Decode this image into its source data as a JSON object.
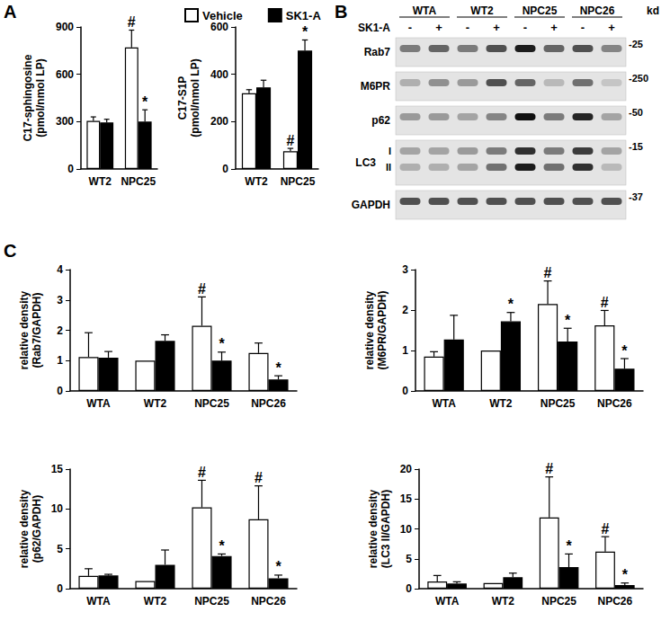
{
  "panel_labels": [
    "A",
    "B",
    "C"
  ],
  "chart_data": [
    {
      "type": "bar",
      "ylabel": "C17-sphingosine\n(pmol/nmol LP)",
      "categories": [
        "WT2",
        "NPC25"
      ],
      "series": [
        {
          "name": "Vehicle",
          "color": "#ffffff",
          "values": [
            305,
            770
          ],
          "errors": [
            25,
            110
          ],
          "annotations": [
            null,
            "#"
          ]
        },
        {
          "name": "SK1-A",
          "color": "#000000",
          "values": [
            295,
            300
          ],
          "errors": [
            20,
            75
          ],
          "annotations": [
            null,
            "*"
          ]
        }
      ],
      "ylim": [
        0,
        900
      ],
      "yticks": [
        0,
        300,
        600,
        900
      ],
      "grid": false,
      "legend": "top"
    },
    {
      "type": "bar",
      "ylabel": "C17-S1P\n(pmol/nmol LP)",
      "categories": [
        "WT2",
        "NPC25"
      ],
      "series": [
        {
          "name": "Vehicle",
          "color": "#ffffff",
          "values": [
            320,
            75
          ],
          "errors": [
            15,
            12
          ],
          "annotations": [
            null,
            "#"
          ]
        },
        {
          "name": "SK1-A",
          "color": "#000000",
          "values": [
            345,
            500
          ],
          "errors": [
            30,
            45
          ],
          "annotations": [
            null,
            "*"
          ]
        }
      ],
      "ylim": [
        0,
        600
      ],
      "yticks": [
        0,
        200,
        400,
        600
      ],
      "grid": false
    },
    {
      "type": "bar",
      "ylabel": "relative density\n(Rab7/GAPDH)",
      "categories": [
        "WTA",
        "WT2",
        "NPC25",
        "NPC26"
      ],
      "series": [
        {
          "name": "Vehicle",
          "color": "#ffffff",
          "values": [
            1.12,
            1.0,
            2.15,
            1.25
          ],
          "errors": [
            0.8,
            0,
            0.95,
            0.33
          ],
          "annotations": [
            null,
            null,
            "#",
            null
          ]
        },
        {
          "name": "SK1-A",
          "color": "#000000",
          "values": [
            1.1,
            1.65,
            1.0,
            0.38
          ],
          "errors": [
            0.2,
            0.2,
            0.28,
            0.12
          ],
          "annotations": [
            null,
            null,
            "*",
            "*"
          ]
        }
      ],
      "ylim": [
        0,
        4
      ],
      "yticks": [
        0,
        1,
        2,
        3,
        4
      ],
      "grid": false
    },
    {
      "type": "bar",
      "ylabel": "relative density\n(M6PR/GAPDH)",
      "categories": [
        "WTA",
        "WT2",
        "NPC25",
        "NPC26"
      ],
      "series": [
        {
          "name": "Vehicle",
          "color": "#ffffff",
          "values": [
            0.85,
            1.0,
            2.15,
            1.62
          ],
          "errors": [
            0.12,
            0,
            0.57,
            0.37
          ],
          "annotations": [
            null,
            null,
            "#",
            "#"
          ]
        },
        {
          "name": "SK1-A",
          "color": "#000000",
          "values": [
            1.27,
            1.72,
            1.22,
            0.55
          ],
          "errors": [
            0.6,
            0.22,
            0.33,
            0.25
          ],
          "annotations": [
            null,
            "*",
            "*",
            "*"
          ]
        }
      ],
      "ylim": [
        0,
        3
      ],
      "yticks": [
        0,
        1,
        2,
        3
      ],
      "grid": false
    },
    {
      "type": "bar",
      "ylabel": "relative density\n(p62/GAPDH)",
      "categories": [
        "WTA",
        "WT2",
        "NPC25",
        "NPC26"
      ],
      "series": [
        {
          "name": "Vehicle",
          "color": "#ffffff",
          "values": [
            1.6,
            0.95,
            10.2,
            8.7
          ],
          "errors": [
            0.9,
            0,
            3.4,
            4.2
          ],
          "annotations": [
            null,
            null,
            "#",
            "#"
          ]
        },
        {
          "name": "SK1-A",
          "color": "#000000",
          "values": [
            1.65,
            3.0,
            4.1,
            1.3
          ],
          "errors": [
            0.15,
            1.85,
            0.25,
            0.4
          ],
          "annotations": [
            null,
            null,
            "*",
            "*"
          ]
        }
      ],
      "ylim": [
        0,
        15
      ],
      "yticks": [
        0,
        5,
        10,
        15
      ],
      "grid": false
    },
    {
      "type": "bar",
      "ylabel": "relative density\n(LC3 II/GAPDH)",
      "categories": [
        "WTA",
        "WT2",
        "NPC25",
        "NPC26"
      ],
      "series": [
        {
          "name": "Vehicle",
          "color": "#ffffff",
          "values": [
            1.2,
            0.95,
            11.9,
            6.2
          ],
          "errors": [
            1.0,
            0,
            6.8,
            2.5
          ],
          "annotations": [
            null,
            null,
            "#",
            "#"
          ]
        },
        {
          "name": "SK1-A",
          "color": "#000000",
          "values": [
            0.85,
            1.9,
            3.6,
            0.6
          ],
          "errors": [
            0.3,
            0.7,
            2.2,
            0.35
          ],
          "annotations": [
            null,
            null,
            "*",
            "*"
          ]
        }
      ],
      "ylim": [
        0,
        20
      ],
      "yticks": [
        0,
        5,
        10,
        15,
        20
      ],
      "grid": false
    }
  ],
  "blot": {
    "treatment": "SK1-A",
    "groups": [
      "WTA",
      "WT2",
      "NPC25",
      "NPC26"
    ],
    "lanes": [
      "-",
      "+",
      "-",
      "+",
      "-",
      "+",
      "-",
      "+"
    ],
    "unit": "kd",
    "rows": [
      {
        "label": "Rab7",
        "kd_label": "-25",
        "bands": [
          {
            "label": null,
            "intensity": [
              0.5,
              0.6,
              0.5,
              0.7,
              0.95,
              0.6,
              0.7,
              0.45
            ]
          }
        ]
      },
      {
        "label": "M6PR",
        "kd_label": "-250",
        "bands": [
          {
            "label": null,
            "intensity": [
              0.25,
              0.4,
              0.35,
              0.7,
              0.6,
              0.2,
              0.55,
              0.15
            ]
          }
        ]
      },
      {
        "label": "p62",
        "kd_label": "-50",
        "bands": [
          {
            "label": null,
            "intensity": [
              0.35,
              0.35,
              0.3,
              0.45,
              1.0,
              0.5,
              0.9,
              0.3
            ]
          }
        ]
      },
      {
        "label": "LC3",
        "kd_label": "-15",
        "bands": [
          {
            "label": "I",
            "intensity": [
              0.3,
              0.3,
              0.35,
              0.5,
              0.85,
              0.5,
              0.8,
              0.3
            ]
          },
          {
            "label": "II",
            "intensity": [
              0.25,
              0.25,
              0.3,
              0.55,
              0.95,
              0.55,
              0.85,
              0.2
            ]
          }
        ]
      },
      {
        "label": "GAPDH",
        "kd_label": "-37",
        "bands": [
          {
            "label": null,
            "intensity": [
              0.7,
              0.7,
              0.7,
              0.7,
              0.7,
              0.7,
              0.7,
              0.7
            ]
          }
        ]
      }
    ]
  }
}
